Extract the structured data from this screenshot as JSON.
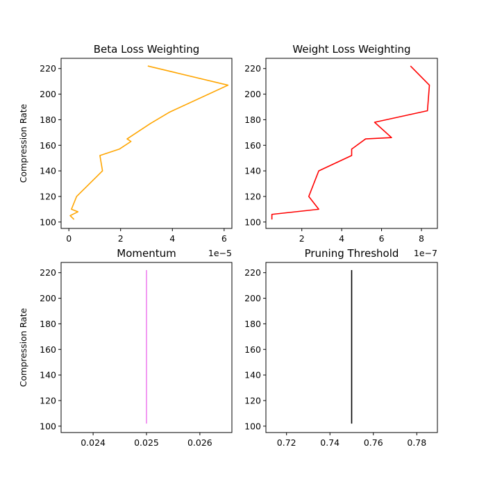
{
  "chart_data": [
    {
      "type": "line",
      "title": "Beta Loss Weighting",
      "xlabel": "",
      "ylabel": "Compression Rate",
      "x_offset_text": "1e−5",
      "xlim": [
        -0.3,
        6.3
      ],
      "ylim": [
        95,
        228
      ],
      "xticks": [
        0,
        2,
        4,
        6
      ],
      "xtick_labels": [
        "0",
        "2",
        "4",
        "6"
      ],
      "yticks": [
        100,
        120,
        140,
        160,
        180,
        200,
        220
      ],
      "ytick_labels": [
        "100",
        "120",
        "140",
        "160",
        "180",
        "200",
        "220"
      ],
      "grid": false,
      "color": "#ffa500",
      "series": [
        {
          "x": [
            0.2,
            0.05,
            0.35,
            0.1,
            0.3,
            1.3,
            1.2,
            1.95,
            2.4,
            2.25,
            3.15,
            3.9,
            6.15,
            3.05
          ],
          "y": [
            102,
            105,
            108,
            110,
            120,
            140,
            152,
            157,
            163,
            165,
            177,
            186,
            207,
            222
          ]
        }
      ]
    },
    {
      "type": "line",
      "title": "Weight Loss Weighting",
      "xlabel": "",
      "ylabel": "",
      "x_offset_text": "1e−7",
      "xlim": [
        0.2,
        8.8
      ],
      "ylim": [
        95,
        228
      ],
      "xticks": [
        2,
        4,
        6,
        8
      ],
      "xtick_labels": [
        "2",
        "4",
        "6",
        "8"
      ],
      "yticks": [
        100,
        120,
        140,
        160,
        180,
        200,
        220
      ],
      "ytick_labels": [
        "100",
        "120",
        "140",
        "160",
        "180",
        "200",
        "220"
      ],
      "grid": false,
      "color": "#ff0000",
      "series": [
        {
          "x": [
            0.5,
            0.5,
            2.85,
            2.35,
            2.85,
            4.5,
            4.5,
            5.2,
            6.5,
            5.65,
            8.3,
            8.4,
            7.45
          ],
          "y": [
            102,
            106,
            110,
            120,
            140,
            152,
            157,
            165,
            166,
            178,
            187,
            207,
            222
          ]
        }
      ]
    },
    {
      "type": "line",
      "title": "Momentum",
      "xlabel": "",
      "ylabel": "Compression Rate",
      "x_offset_text": "",
      "xlim": [
        0.0234,
        0.0266
      ],
      "ylim": [
        95,
        228
      ],
      "xticks": [
        0.024,
        0.025,
        0.026
      ],
      "xtick_labels": [
        "0.024",
        "0.025",
        "0.026"
      ],
      "yticks": [
        100,
        120,
        140,
        160,
        180,
        200,
        220
      ],
      "ytick_labels": [
        "100",
        "120",
        "140",
        "160",
        "180",
        "200",
        "220"
      ],
      "grid": false,
      "color": "#ee82ee",
      "series": [
        {
          "x": [
            0.025,
            0.025
          ],
          "y": [
            102,
            222
          ]
        }
      ]
    },
    {
      "type": "line",
      "title": "Pruning Threshold",
      "xlabel": "",
      "ylabel": "",
      "x_offset_text": "",
      "xlim": [
        0.7105,
        0.7895
      ],
      "ylim": [
        95,
        228
      ],
      "xticks": [
        0.72,
        0.74,
        0.76,
        0.78
      ],
      "xtick_labels": [
        "0.72",
        "0.74",
        "0.76",
        "0.78"
      ],
      "yticks": [
        100,
        120,
        140,
        160,
        180,
        200,
        220
      ],
      "ytick_labels": [
        "100",
        "120",
        "140",
        "160",
        "180",
        "200",
        "220"
      ],
      "grid": false,
      "color": "#000000",
      "series": [
        {
          "x": [
            0.75,
            0.75
          ],
          "y": [
            102,
            222
          ]
        }
      ]
    }
  ]
}
